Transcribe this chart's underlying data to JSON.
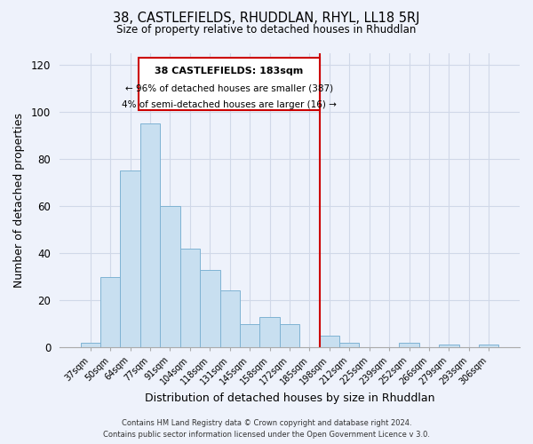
{
  "title": "38, CASTLEFIELDS, RHUDDLAN, RHYL, LL18 5RJ",
  "subtitle": "Size of property relative to detached houses in Rhuddlan",
  "xlabel": "Distribution of detached houses by size in Rhuddlan",
  "ylabel": "Number of detached properties",
  "footer_line1": "Contains HM Land Registry data © Crown copyright and database right 2024.",
  "footer_line2": "Contains public sector information licensed under the Open Government Licence v 3.0.",
  "bar_labels": [
    "37sqm",
    "50sqm",
    "64sqm",
    "77sqm",
    "91sqm",
    "104sqm",
    "118sqm",
    "131sqm",
    "145sqm",
    "158sqm",
    "172sqm",
    "185sqm",
    "198sqm",
    "212sqm",
    "225sqm",
    "239sqm",
    "252sqm",
    "266sqm",
    "279sqm",
    "293sqm",
    "306sqm"
  ],
  "bar_values": [
    2,
    30,
    75,
    95,
    60,
    42,
    33,
    24,
    10,
    13,
    10,
    0,
    5,
    2,
    0,
    0,
    2,
    0,
    1,
    0,
    1
  ],
  "bar_color": "#c8dff0",
  "bar_edge_color": "#7fb3d3",
  "vline_x_index": 11,
  "vline_color": "#cc0000",
  "ylim": [
    0,
    125
  ],
  "yticks": [
    0,
    20,
    40,
    60,
    80,
    100,
    120
  ],
  "annotation_title": "38 CASTLEFIELDS: 183sqm",
  "annotation_line1": "← 96% of detached houses are smaller (387)",
  "annotation_line2": "4% of semi-detached houses are larger (16) →",
  "annotation_box_color": "#ffffff",
  "annotation_box_edge": "#cc0000",
  "background_color": "#eef2fb",
  "grid_color": "#d0d8e8"
}
